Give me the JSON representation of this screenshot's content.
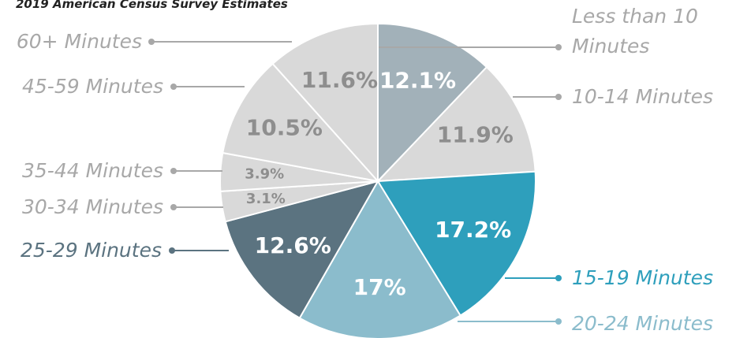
{
  "chart_data": {
    "type": "pie",
    "subtitle": "2019 American Census Survey Estimates",
    "categories": [
      "Less than 10 Minutes",
      "10-14 Minutes",
      "15-19 Minutes",
      "20-24 Minutes",
      "25-29 Minutes",
      "30-34 Minutes",
      "35-44 Minutes",
      "45-59 Minutes",
      "60+ Minutes"
    ],
    "values": [
      12.1,
      11.9,
      17.2,
      17,
      12.6,
      3.1,
      3.9,
      10.5,
      11.6
    ],
    "value_labels": [
      "12.1%",
      "11.9%",
      "17.2%",
      "17%",
      "12.6%",
      "3.1%",
      "3.9%",
      "10.5%",
      "11.6%"
    ],
    "colors": [
      "#a2b1b9",
      "#d9d9d9",
      "#2e9fbc",
      "#8bbccc",
      "#5b7380",
      "#d9d9d9",
      "#d9d9d9",
      "#d9d9d9",
      "#d9d9d9"
    ]
  }
}
